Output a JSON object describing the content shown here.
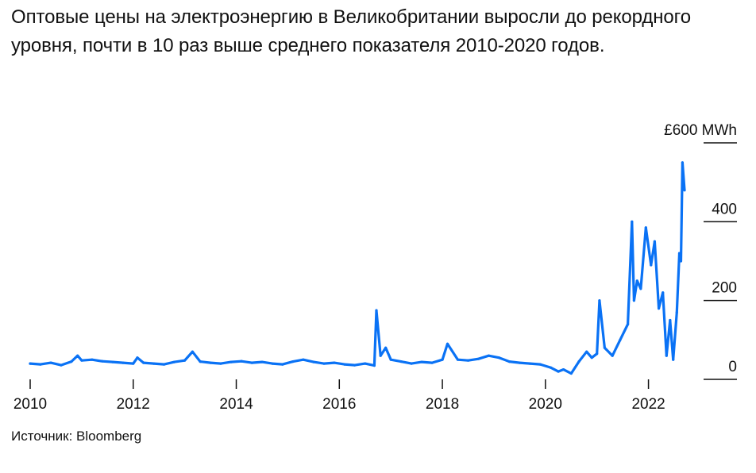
{
  "title": "Оптовые цены на электроэнергию в Великобритании выросли до рекордного уровня, почти в 10 раз выше среднего показателя 2010-2020 годов.",
  "source": "Источник: Bloomberg",
  "colors": {
    "series": "#0a72f5",
    "text": "#111111",
    "tick": "#111111"
  },
  "chart_data": {
    "type": "line",
    "title": "Оптовые цены на электроэнергию в Великобритании выросли до рекордного уровня, почти в 10 раз выше среднего показателя 2010-2020 годов.",
    "xlabel": "",
    "ylabel": "",
    "xlim": [
      2010,
      2022.7
    ],
    "ylim": [
      0,
      600
    ],
    "grid": false,
    "x_ticks": [
      2010,
      2012,
      2014,
      2016,
      2018,
      2020,
      2022
    ],
    "x_tick_labels": [
      "2010",
      "2012",
      "2014",
      "2016",
      "2018",
      "2020",
      "2022"
    ],
    "y_ticks": [
      0,
      200,
      400,
      600
    ],
    "y_tick_labels": [
      "0",
      "200",
      "400",
      "£600 MWh"
    ],
    "series": [
      {
        "x": [
          2010.0,
          2010.2,
          2010.4,
          2010.6,
          2010.8,
          2010.92,
          2011.0,
          2011.2,
          2011.4,
          2011.6,
          2011.8,
          2012.0,
          2012.08,
          2012.2,
          2012.4,
          2012.6,
          2012.8,
          2013.0,
          2013.15,
          2013.3,
          2013.5,
          2013.7,
          2013.9,
          2014.1,
          2014.3,
          2014.5,
          2014.7,
          2014.9,
          2015.1,
          2015.3,
          2015.5,
          2015.7,
          2015.9,
          2016.1,
          2016.3,
          2016.5,
          2016.68,
          2016.72,
          2016.8,
          2016.9,
          2017.0,
          2017.2,
          2017.4,
          2017.6,
          2017.8,
          2018.0,
          2018.1,
          2018.3,
          2018.5,
          2018.7,
          2018.9,
          2019.1,
          2019.3,
          2019.5,
          2019.7,
          2019.9,
          2020.1,
          2020.25,
          2020.35,
          2020.5,
          2020.65,
          2020.8,
          2020.9,
          2021.0,
          2021.05,
          2021.15,
          2021.3,
          2021.45,
          2021.6,
          2021.68,
          2021.72,
          2021.78,
          2021.85,
          2021.95,
          2022.05,
          2022.12,
          2022.2,
          2022.28,
          2022.35,
          2022.42,
          2022.48,
          2022.55,
          2022.6,
          2022.63,
          2022.66,
          2022.7
        ],
        "y": [
          40,
          38,
          42,
          36,
          45,
          60,
          48,
          50,
          46,
          44,
          42,
          40,
          55,
          42,
          40,
          38,
          44,
          48,
          70,
          45,
          42,
          40,
          44,
          46,
          42,
          44,
          40,
          38,
          45,
          50,
          44,
          40,
          42,
          38,
          36,
          40,
          35,
          175,
          60,
          80,
          50,
          45,
          40,
          44,
          42,
          50,
          90,
          50,
          48,
          52,
          60,
          55,
          45,
          42,
          40,
          38,
          30,
          20,
          25,
          15,
          45,
          70,
          55,
          65,
          200,
          80,
          60,
          100,
          140,
          400,
          200,
          250,
          230,
          385,
          290,
          350,
          180,
          220,
          60,
          150,
          50,
          170,
          320,
          300,
          550,
          480
        ]
      }
    ]
  }
}
